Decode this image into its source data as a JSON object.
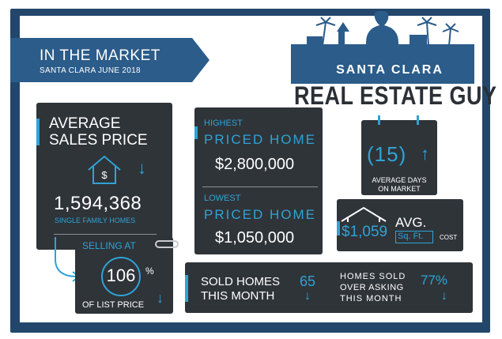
{
  "header": {
    "title": "IN THE MARKET",
    "subtitle": "SANTA CLARA JUNE 2018"
  },
  "logo": {
    "line1": "SANTA CLARA",
    "line2": "REAL ESTATE GUY"
  },
  "average_sales": {
    "heading_line1": "AVERAGE",
    "heading_line2": "SALES PRICE",
    "house_symbol": "$",
    "trend_icon": "arrow-down-icon",
    "value": "1,594,368",
    "caption": "SINGLE FAMILY HOMES"
  },
  "selling_at": {
    "label": "SELLING AT",
    "value": "106",
    "unit": "%",
    "caption": "OF LIST PRICE",
    "trend_icon": "arrow-down-icon"
  },
  "highest": {
    "label": "HIGHEST",
    "title": "PRICED HOME",
    "value": "$2,800,000"
  },
  "lowest": {
    "label": "LOWEST",
    "title": "PRICED HOME",
    "value": "$1,050,000"
  },
  "days_on_market": {
    "value": "(15)",
    "trend_icon": "arrow-up-icon",
    "caption_line1": "AVERAGE DAYS",
    "caption_line2": "ON MARKET"
  },
  "price_per_sqft": {
    "value": "$1,059",
    "label": "AVG.",
    "unit": "Sq. Ft.",
    "suffix": "COST"
  },
  "sold": {
    "label_line1": "SOLD HOMES",
    "label_line2": "THIS MONTH",
    "count": "65",
    "over_line1": "HOMES SOLD",
    "over_line2": "OVER ASKING",
    "over_line3": "THIS MONTH",
    "over_percent": "77%"
  },
  "colors": {
    "navy": "#23476b",
    "banner": "#2b5c8a",
    "card": "#2f3439",
    "accent": "#2fa3d6"
  }
}
